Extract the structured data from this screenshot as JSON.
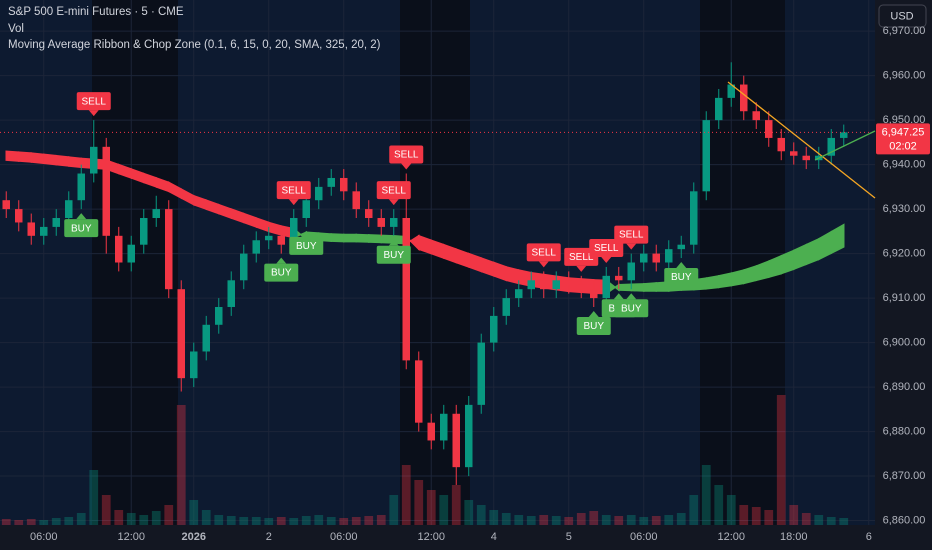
{
  "chart_data": {
    "type": "candlestick",
    "title": "S&P 500 E-mini Futures · 5 · CME",
    "indicators": [
      "Vol",
      "Moving Average Ribbon & Chop Zone (0.1, 6, 15, 0, 20, SMA, 325, 20, 2)"
    ],
    "currency": "USD",
    "categories": [
      null,
      null,
      null,
      "06:00",
      null,
      null,
      null,
      null,
      null,
      null,
      "12:00",
      null,
      null,
      null,
      null,
      "2026",
      null,
      null,
      null,
      null,
      null,
      "2",
      null,
      null,
      null,
      null,
      null,
      "06:00",
      null,
      null,
      null,
      null,
      null,
      null,
      "12:00",
      null,
      null,
      null,
      null,
      "4",
      null,
      null,
      null,
      null,
      null,
      "5",
      null,
      null,
      null,
      null,
      null,
      "06:00",
      null,
      null,
      null,
      null,
      null,
      null,
      "12:00",
      null,
      null,
      null,
      null,
      "18:00",
      null,
      null,
      null,
      null,
      null,
      "6"
    ],
    "open": [
      6932,
      6930,
      6927,
      6924,
      6926,
      6928,
      6932,
      6938,
      6944,
      6924,
      6918,
      6922,
      6928,
      6930,
      6912,
      6892,
      6898,
      6904,
      6908,
      6914,
      6920,
      6923,
      6924,
      6922,
      6928,
      6932,
      6935,
      6937,
      6934,
      6930,
      6928,
      6926,
      6928,
      6896,
      6882,
      6878,
      6884,
      6872,
      6886,
      6900,
      6906,
      6910,
      6912,
      6914,
      6912,
      6914,
      6913,
      6912,
      6910,
      6915,
      6914,
      6918,
      6920,
      6918,
      6921,
      6922,
      6934,
      6950,
      6955,
      6958,
      6952,
      6950,
      6946,
      6943,
      6942,
      6941,
      6942,
      6946,
      null,
      null
    ],
    "high": [
      6934,
      6932,
      6929,
      6928,
      6930,
      6934,
      6940,
      6950,
      6946,
      6926,
      6924,
      6930,
      6933,
      6932,
      6914,
      6900,
      6906,
      6910,
      6916,
      6922,
      6925,
      6926,
      6926,
      6930,
      6934,
      6937,
      6939,
      6939,
      6936,
      6932,
      6930,
      6930,
      6938,
      6898,
      6884,
      6886,
      6886,
      6888,
      6902,
      6908,
      6912,
      6914,
      6916,
      6916,
      6916,
      6916,
      6915,
      6914,
      6917,
      6917,
      6920,
      6922,
      6922,
      6923,
      6924,
      6936,
      6952,
      6957,
      6963,
      6960,
      6954,
      6952,
      6948,
      6945,
      6944,
      6944,
      6948,
      6949,
      null,
      null
    ],
    "low": [
      6928,
      6925,
      6922,
      6922,
      6924,
      6926,
      6930,
      6936,
      6920,
      6916,
      6916,
      6920,
      6926,
      6910,
      6889,
      6890,
      6896,
      6902,
      6906,
      6912,
      6918,
      6921,
      6920,
      6920,
      6926,
      6930,
      6933,
      6932,
      6928,
      6926,
      6924,
      6924,
      6894,
      6880,
      6876,
      6876,
      6868,
      6870,
      6884,
      6898,
      6904,
      6908,
      6910,
      6910,
      6910,
      6911,
      6910,
      6908,
      6908,
      6912,
      6912,
      6916,
      6916,
      6916,
      6919,
      6920,
      6932,
      6948,
      6953,
      6950,
      6948,
      6944,
      6941,
      6940,
      6939,
      6939,
      6940,
      6944,
      null,
      null
    ],
    "close": [
      6930,
      6927,
      6924,
      6926,
      6928,
      6932,
      6938,
      6944,
      6924,
      6918,
      6922,
      6928,
      6930,
      6912,
      6892,
      6898,
      6904,
      6908,
      6914,
      6920,
      6923,
      6924,
      6922,
      6928,
      6932,
      6935,
      6937,
      6934,
      6930,
      6928,
      6926,
      6928,
      6896,
      6882,
      6878,
      6884,
      6872,
      6886,
      6900,
      6906,
      6910,
      6912,
      6914,
      6912,
      6914,
      6913,
      6912,
      6910,
      6915,
      6914,
      6918,
      6920,
      6918,
      6921,
      6922,
      6934,
      6950,
      6955,
      6958,
      6952,
      6950,
      6946,
      6943,
      6942,
      6941,
      6942,
      6946,
      6947.25,
      null,
      null
    ],
    "volume": [
      6,
      5,
      6,
      5,
      7,
      8,
      12,
      55,
      30,
      15,
      12,
      10,
      14,
      20,
      120,
      25,
      15,
      10,
      9,
      8,
      8,
      7,
      8,
      7,
      9,
      10,
      8,
      7,
      8,
      9,
      10,
      30,
      60,
      45,
      35,
      30,
      40,
      25,
      20,
      15,
      12,
      10,
      9,
      10,
      9,
      8,
      12,
      14,
      10,
      9,
      10,
      8,
      9,
      10,
      12,
      30,
      60,
      40,
      30,
      20,
      18,
      15,
      130,
      20,
      12,
      10,
      8,
      7,
      null,
      null
    ],
    "ribbon_fast": [
      6941,
      6940.8,
      6940.6,
      6940.3,
      6940,
      6939.7,
      6939.4,
      6939.2,
      6939,
      6938,
      6937,
      6936,
      6935,
      6934,
      6932.5,
      6931,
      6930,
      6929,
      6928,
      6927,
      6926,
      6925,
      6924.2,
      6923.6,
      6924.8,
      6924.6,
      6924.4,
      6924.3,
      6924.3,
      6924.2,
      6924.1,
      6924,
      6923.8,
      6921,
      6920,
      6919,
      6918,
      6917,
      6916,
      6915,
      6914,
      6913.3,
      6912.7,
      6912.3,
      6911.9,
      6911.5,
      6911.3,
      6911.1,
      6911,
      6913,
      6913.1,
      6913.2,
      6913.4,
      6913.6,
      6913.8,
      6914.1,
      6914.5,
      6915,
      6915.6,
      6916.3,
      6917.2,
      6918.3,
      6919.5,
      6920.7,
      6922,
      6923.3,
      6924.9,
      6926.5,
      null,
      null
    ],
    "ribbon_slow": [
      6943,
      6942.8,
      6942.6,
      6942.3,
      6942,
      6941.7,
      6941.4,
      6941.2,
      6941,
      6940,
      6939,
      6938,
      6937,
      6936,
      6934.5,
      6933,
      6932,
      6931,
      6930,
      6929,
      6928,
      6927,
      6926.2,
      6925.6,
      6923.2,
      6923,
      6922.8,
      6922.7,
      6922.7,
      6922.6,
      6922.5,
      6922.4,
      6922.2,
      6924,
      6923,
      6922,
      6921,
      6920,
      6919,
      6918,
      6917,
      6916.3,
      6915.7,
      6915.3,
      6914.9,
      6914.5,
      6914.3,
      6914.1,
      6914,
      6911.8,
      6911.7,
      6911.6,
      6911.6,
      6911.6,
      6911.8,
      6911.9,
      6912.1,
      6912.4,
      6912.8,
      6913.3,
      6914,
      6914.7,
      6915.5,
      6916.5,
      6917.6,
      6918.7,
      6920.1,
      6921.5,
      null,
      null
    ],
    "buy_signals": [
      {
        "text": "BUY",
        "x": 6
      },
      {
        "text": "BUY",
        "x": 22
      },
      {
        "text": "BUY",
        "x": 24
      },
      {
        "text": "BUY",
        "x": 31
      },
      {
        "text": "BUY",
        "x": 47
      },
      {
        "text": "BUY",
        "x": 49
      },
      {
        "text": "BUY",
        "x": 50
      },
      {
        "text": "BUY",
        "x": 54
      }
    ],
    "sell_signals": [
      {
        "text": "SELL",
        "x": 7
      },
      {
        "text": "SELL",
        "x": 23
      },
      {
        "text": "SELL",
        "x": 31
      },
      {
        "text": "SELL",
        "x": 32
      },
      {
        "text": "SELL",
        "x": 43
      },
      {
        "text": "SELL",
        "x": 46
      },
      {
        "text": "SELL",
        "x": 48
      },
      {
        "text": "SELL",
        "x": 50
      }
    ],
    "last_price": {
      "value": 6947.25,
      "label": "6,947.25"
    },
    "countdown": "02:02",
    "ylim": [
      6859,
      6977
    ],
    "yticks": [
      {
        "value": 6860,
        "label": "6,860.00"
      },
      {
        "value": 6870,
        "label": "6,870.00"
      },
      {
        "value": 6880,
        "label": "6,880.00"
      },
      {
        "value": 6890,
        "label": "6,890.00"
      },
      {
        "value": 6900,
        "label": "6,900.00"
      },
      {
        "value": 6910,
        "label": "6,910.00"
      },
      {
        "value": 6920,
        "label": "6,920.00"
      },
      {
        "value": 6930,
        "label": "6,930.00"
      },
      {
        "value": 6940,
        "label": "6,940.00"
      },
      {
        "value": 6950,
        "label": "6,950.00"
      },
      {
        "value": 6960,
        "label": "6,960.00"
      },
      {
        "value": 6970,
        "label": "6,970.00"
      }
    ],
    "grid": true,
    "up_color": "#089981",
    "down_color": "#f23645",
    "ribbon_up_color": "#4caf50",
    "ribbon_down_color": "#f23645",
    "buy_color": "#4caf50",
    "sell_color": "#f23645"
  }
}
